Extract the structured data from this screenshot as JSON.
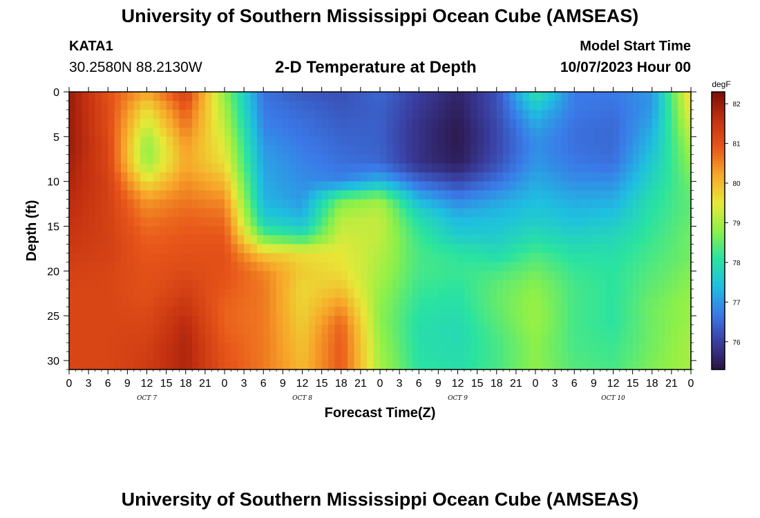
{
  "header": {
    "title": "University of Southern Mississippi Ocean Cube (AMSEAS)",
    "station_id": "KATA1",
    "station_coords": "30.2580N  88.2130W",
    "chart_title": "2-D Temperature at Depth",
    "model_start_label": "Model Start Time",
    "model_start_value": "10/07/2023 Hour 00"
  },
  "footer": {
    "title": "University of Southern Mississippi Ocean Cube (AMSEAS)"
  },
  "chart_data": {
    "type": "heatmap",
    "title": "2-D Temperature at Depth",
    "xlabel": "Forecast Time(Z)",
    "ylabel": "Depth (ft)",
    "x_hours_range": [
      0,
      96
    ],
    "ylim": [
      0,
      31
    ],
    "x_tick_labels": [
      "0",
      "3",
      "6",
      "9",
      "12",
      "15",
      "18",
      "21",
      "0",
      "3",
      "6",
      "9",
      "12",
      "15",
      "18",
      "21",
      "0",
      "3",
      "6",
      "9",
      "12",
      "15",
      "18",
      "21",
      "0",
      "3",
      "6",
      "9",
      "12",
      "15",
      "18",
      "21",
      "0"
    ],
    "date_labels": [
      {
        "label": "OCT 7",
        "hour": 12
      },
      {
        "label": "OCT 8",
        "hour": 36
      },
      {
        "label": "OCT 9",
        "hour": 60
      },
      {
        "label": "OCT 10",
        "hour": 84
      }
    ],
    "y_tick_labels": [
      "0",
      "5",
      "10",
      "15",
      "20",
      "25",
      "30"
    ],
    "y_tick_values": [
      0,
      5,
      10,
      15,
      20,
      25,
      30
    ],
    "colorbar": {
      "unit": "degF",
      "min": 75.3,
      "max": 82.3,
      "tick_labels": [
        "76",
        "77",
        "78",
        "79",
        "80",
        "81",
        "82"
      ],
      "tick_values": [
        76,
        77,
        78,
        79,
        80,
        81,
        82
      ],
      "colors": [
        "#2a1342",
        "#3a3ea0",
        "#3a7ae8",
        "#1fbfe0",
        "#2ae3a0",
        "#8ef048",
        "#e8e838",
        "#f7a72a",
        "#e8561a",
        "#c23010",
        "#7a0e08"
      ]
    },
    "depths_ft": [
      0,
      2,
      4,
      6,
      8,
      10,
      12,
      14,
      16,
      18,
      20,
      22,
      24,
      26,
      28,
      31
    ],
    "hours": [
      0,
      6,
      12,
      18,
      24,
      30,
      36,
      42,
      48,
      54,
      60,
      66,
      72,
      78,
      84,
      90,
      96
    ],
    "temperature_degF": [
      [
        82.0,
        81.0,
        80.2,
        81.3,
        78.8,
        76.6,
        76.3,
        76.2,
        76.5,
        76.0,
        75.6,
        76.2,
        78.1,
        76.7,
        76.7,
        77.0,
        79.8
      ],
      [
        82.0,
        81.1,
        79.6,
        80.9,
        79.0,
        76.7,
        76.5,
        76.3,
        76.4,
        75.9,
        75.5,
        76.2,
        77.5,
        76.7,
        76.6,
        77.0,
        79.6
      ],
      [
        82.0,
        81.1,
        79.2,
        80.6,
        79.2,
        76.8,
        76.6,
        76.4,
        76.4,
        75.8,
        75.4,
        76.1,
        77.1,
        76.6,
        76.5,
        77.2,
        79.3
      ],
      [
        82.0,
        81.2,
        78.8,
        80.3,
        79.4,
        77.0,
        76.7,
        76.5,
        76.4,
        75.8,
        75.4,
        76.1,
        76.9,
        76.6,
        76.5,
        77.4,
        79.0
      ],
      [
        81.9,
        81.2,
        78.9,
        80.2,
        79.6,
        77.1,
        76.8,
        76.6,
        76.5,
        75.8,
        75.5,
        76.2,
        77.0,
        76.7,
        76.6,
        77.6,
        78.8
      ],
      [
        81.8,
        81.3,
        79.6,
        80.4,
        80.0,
        77.2,
        76.9,
        76.8,
        77.3,
        76.5,
        76.1,
        76.6,
        77.2,
        76.9,
        76.9,
        77.8,
        78.6
      ],
      [
        81.7,
        81.3,
        80.3,
        80.6,
        80.4,
        77.3,
        77.0,
        78.6,
        78.9,
        77.3,
        76.8,
        77.1,
        77.4,
        77.2,
        77.2,
        78.0,
        78.5
      ],
      [
        81.6,
        81.3,
        80.6,
        80.8,
        80.7,
        77.6,
        77.3,
        79.1,
        79.2,
        77.9,
        77.3,
        77.4,
        77.6,
        77.4,
        77.5,
        78.1,
        78.5
      ],
      [
        81.5,
        81.3,
        80.8,
        80.9,
        80.9,
        78.4,
        78.0,
        79.3,
        79.2,
        78.2,
        77.6,
        77.6,
        77.9,
        77.7,
        77.8,
        78.2,
        78.6
      ],
      [
        81.4,
        81.3,
        80.9,
        81.0,
        81.0,
        79.8,
        79.6,
        79.5,
        79.1,
        78.3,
        78.1,
        77.9,
        78.3,
        78.0,
        78.0,
        78.3,
        78.6
      ],
      [
        81.3,
        81.2,
        81.0,
        81.1,
        81.0,
        80.5,
        79.8,
        79.6,
        79.0,
        78.3,
        78.2,
        78.3,
        78.6,
        78.2,
        78.1,
        78.4,
        78.7
      ],
      [
        81.2,
        81.2,
        81.0,
        81.3,
        80.9,
        80.6,
        79.7,
        79.9,
        78.9,
        78.2,
        78.1,
        78.5,
        78.8,
        78.3,
        78.1,
        78.5,
        78.8
      ],
      [
        81.2,
        81.2,
        81.1,
        81.5,
        80.8,
        80.6,
        79.7,
        80.4,
        78.8,
        78.1,
        78.0,
        78.5,
        78.9,
        78.3,
        78.1,
        78.6,
        78.9
      ],
      [
        81.2,
        81.2,
        81.2,
        81.7,
        80.8,
        80.6,
        79.8,
        80.8,
        78.8,
        78.0,
        77.9,
        78.4,
        78.9,
        78.3,
        78.1,
        78.6,
        78.9
      ],
      [
        81.2,
        81.2,
        81.3,
        81.8,
        80.9,
        80.6,
        79.9,
        80.9,
        78.9,
        78.0,
        77.9,
        78.3,
        78.8,
        78.3,
        78.2,
        78.6,
        79.0
      ],
      [
        81.2,
        81.2,
        81.4,
        81.8,
        81.0,
        80.6,
        80.0,
        80.9,
        79.0,
        78.1,
        78.0,
        78.3,
        78.8,
        78.4,
        78.3,
        78.7,
        79.0
      ]
    ]
  }
}
